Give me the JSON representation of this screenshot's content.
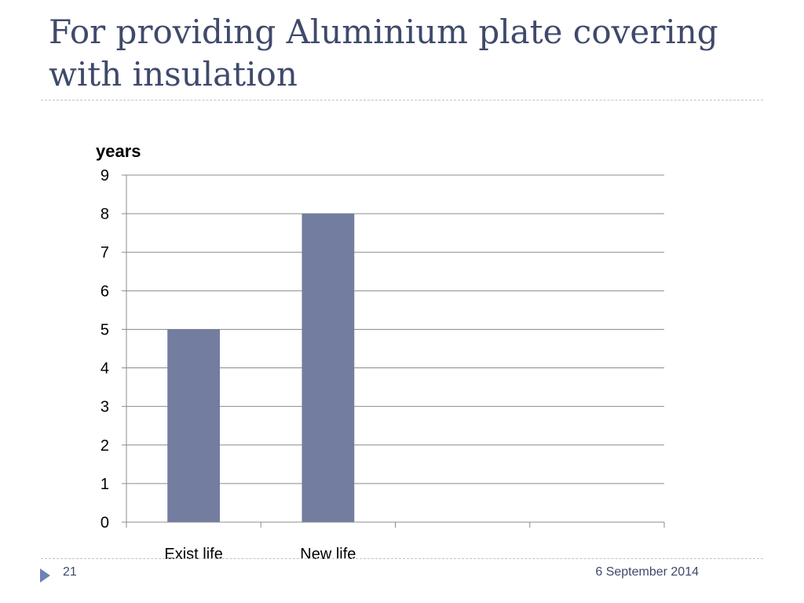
{
  "slide": {
    "title": "For providing Aluminium plate covering with insulation",
    "page_number": "21",
    "date": "6 September 2014"
  },
  "colors": {
    "bar": "#727da0",
    "gridline": "#8c8c8c",
    "title": "#3f4a6b",
    "accent": "#6d84b4"
  },
  "chart_data": {
    "type": "bar",
    "categories": [
      "Exist life",
      "New life",
      "",
      ""
    ],
    "values": [
      5,
      8,
      null,
      null
    ],
    "title": "",
    "xlabel": "",
    "ylabel": "years",
    "ylim": [
      0,
      9
    ],
    "yticks": [
      "0",
      "1",
      "2",
      "3",
      "4",
      "5",
      "6",
      "7",
      "8",
      "9"
    ],
    "grid": true,
    "legend": "none"
  },
  "icons": {
    "footer_bullet": "triangle-right-icon"
  }
}
